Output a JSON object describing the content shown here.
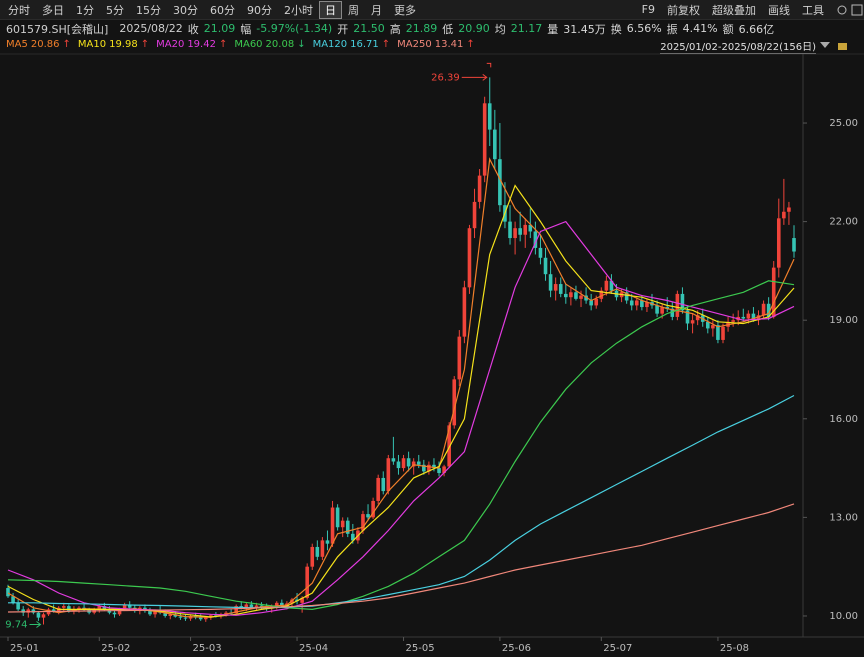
{
  "toolbar": {
    "periods": [
      "分时",
      "多日",
      "1分",
      "5分",
      "15分",
      "30分",
      "60分",
      "90分",
      "2小时",
      "日",
      "周",
      "月",
      "更多"
    ],
    "active_period": 9,
    "tools": [
      "F9",
      "前复权",
      "超级叠加",
      "画线",
      "工具"
    ]
  },
  "quote": {
    "code": "601579.SH[会稽山]",
    "date": "2025/08/22",
    "fields": [
      {
        "label": "收",
        "value": "21.09",
        "color": "down"
      },
      {
        "label": "幅",
        "value": "-5.97%(-1.34)",
        "color": "down"
      },
      {
        "label": "开",
        "value": "21.50",
        "color": "down"
      },
      {
        "label": "高",
        "value": "21.89",
        "color": "down"
      },
      {
        "label": "低",
        "value": "20.90",
        "color": "down"
      },
      {
        "label": "均",
        "value": "21.17",
        "color": "down"
      },
      {
        "label": "量",
        "value": "31.45万",
        "color": "plain"
      },
      {
        "label": "换",
        "value": "6.56%",
        "color": "plain"
      },
      {
        "label": "振",
        "value": "4.41%",
        "color": "plain"
      },
      {
        "label": "额",
        "value": "6.66亿",
        "color": "plain"
      }
    ]
  },
  "chart_data": {
    "type": "candlestick",
    "range_label": "2025/01/02-2025/08/22(156日)",
    "up_color": "#f0443a",
    "down_color": "#36c4b4",
    "ylim": [
      9.36,
      27.07
    ],
    "yticks": [
      {
        "value": 10,
        "label": "10.00"
      },
      {
        "value": 13,
        "label": "13.00"
      },
      {
        "value": 16,
        "label": "16.00"
      },
      {
        "value": 19,
        "label": "19.00"
      },
      {
        "value": 22,
        "label": "22.00"
      },
      {
        "value": 25,
        "label": "25.00"
      }
    ],
    "xlim": [
      0,
      155
    ],
    "xticks": [
      {
        "value": 0,
        "label": "25-01"
      },
      {
        "value": 18,
        "label": "25-02"
      },
      {
        "value": 36,
        "label": "25-03"
      },
      {
        "value": 57,
        "label": "25-04"
      },
      {
        "value": 78,
        "label": "25-05"
      },
      {
        "value": 97,
        "label": "25-06"
      },
      {
        "value": 117,
        "label": "25-07"
      },
      {
        "value": 140,
        "label": "25-08"
      }
    ],
    "max_label": {
      "index": 95,
      "value": 26.39
    },
    "min_label": {
      "index": 7,
      "value": 9.74
    },
    "candles": [
      [
        10.85,
        10.95,
        10.55,
        10.6
      ],
      [
        10.6,
        10.7,
        10.35,
        10.4
      ],
      [
        10.4,
        10.5,
        10.15,
        10.2
      ],
      [
        10.2,
        10.3,
        10.0,
        10.1
      ],
      [
        10.1,
        10.25,
        9.95,
        10.2
      ],
      [
        10.2,
        10.3,
        10.05,
        10.1
      ],
      [
        10.1,
        10.15,
        9.85,
        9.95
      ],
      [
        9.95,
        10.1,
        9.74,
        10.05
      ],
      [
        10.05,
        10.25,
        10.0,
        10.2
      ],
      [
        10.2,
        10.35,
        10.1,
        10.15
      ],
      [
        10.15,
        10.3,
        10.05,
        10.25
      ],
      [
        10.25,
        10.4,
        10.15,
        10.3
      ],
      [
        10.3,
        10.35,
        10.1,
        10.15
      ],
      [
        10.15,
        10.3,
        10.05,
        10.2
      ],
      [
        10.2,
        10.3,
        10.1,
        10.25
      ],
      [
        10.25,
        10.35,
        10.15,
        10.2
      ],
      [
        10.2,
        10.25,
        10.05,
        10.1
      ],
      [
        10.1,
        10.25,
        10.05,
        10.2
      ],
      [
        10.2,
        10.35,
        10.1,
        10.3
      ],
      [
        10.3,
        10.4,
        10.15,
        10.2
      ],
      [
        10.2,
        10.3,
        10.05,
        10.1
      ],
      [
        10.1,
        10.2,
        9.95,
        10.05
      ],
      [
        10.05,
        10.25,
        10.0,
        10.2
      ],
      [
        10.2,
        10.4,
        10.15,
        10.35
      ],
      [
        10.35,
        10.45,
        10.2,
        10.25
      ],
      [
        10.25,
        10.35,
        10.1,
        10.15
      ],
      [
        10.15,
        10.3,
        10.05,
        10.25
      ],
      [
        10.25,
        10.35,
        10.1,
        10.15
      ],
      [
        10.15,
        10.25,
        10.0,
        10.05
      ],
      [
        10.05,
        10.2,
        9.95,
        10.15
      ],
      [
        10.15,
        10.3,
        10.05,
        10.1
      ],
      [
        10.1,
        10.2,
        9.95,
        10.0
      ],
      [
        10.0,
        10.1,
        9.9,
        10.05
      ],
      [
        10.05,
        10.15,
        9.95,
        9.98
      ],
      [
        9.98,
        10.1,
        9.88,
        9.95
      ],
      [
        9.95,
        10.05,
        9.85,
        9.92
      ],
      [
        9.92,
        10.05,
        9.85,
        10.0
      ],
      [
        10.0,
        10.1,
        9.9,
        9.95
      ],
      [
        9.95,
        10.05,
        9.85,
        9.9
      ],
      [
        9.9,
        10.0,
        9.82,
        9.95
      ],
      [
        9.95,
        10.05,
        9.88,
        10.02
      ],
      [
        10.02,
        10.12,
        9.95,
        10.0
      ],
      [
        10.0,
        10.1,
        9.92,
        10.05
      ],
      [
        10.05,
        10.15,
        9.98,
        10.1
      ],
      [
        10.1,
        10.2,
        10.02,
        10.08
      ],
      [
        10.08,
        10.35,
        10.05,
        10.3
      ],
      [
        10.3,
        10.45,
        10.2,
        10.25
      ],
      [
        10.25,
        10.4,
        10.15,
        10.35
      ],
      [
        10.35,
        10.45,
        10.2,
        10.25
      ],
      [
        10.25,
        10.4,
        10.18,
        10.32
      ],
      [
        10.32,
        10.42,
        10.2,
        10.28
      ],
      [
        10.28,
        10.38,
        10.15,
        10.22
      ],
      [
        10.22,
        10.35,
        10.1,
        10.3
      ],
      [
        10.3,
        10.45,
        10.2,
        10.4
      ],
      [
        10.4,
        10.5,
        10.25,
        10.3
      ],
      [
        10.3,
        10.45,
        10.2,
        10.38
      ],
      [
        10.38,
        10.55,
        10.3,
        10.5
      ],
      [
        10.5,
        10.7,
        10.35,
        10.45
      ],
      [
        10.4,
        10.6,
        10.1,
        10.55
      ],
      [
        10.55,
        11.6,
        10.5,
        11.5
      ],
      [
        11.5,
        12.2,
        11.4,
        12.1
      ],
      [
        12.1,
        12.3,
        11.7,
        11.8
      ],
      [
        11.8,
        12.4,
        11.7,
        12.3
      ],
      [
        12.3,
        12.6,
        12.0,
        12.2
      ],
      [
        12.2,
        13.5,
        12.1,
        13.3
      ],
      [
        13.3,
        13.4,
        12.6,
        12.7
      ],
      [
        12.7,
        13.0,
        12.4,
        12.9
      ],
      [
        12.9,
        13.0,
        12.4,
        12.5
      ],
      [
        12.5,
        12.8,
        12.2,
        12.3
      ],
      [
        12.3,
        12.7,
        12.2,
        12.6
      ],
      [
        12.6,
        13.2,
        12.5,
        13.1
      ],
      [
        13.1,
        13.4,
        12.9,
        13.0
      ],
      [
        13.0,
        13.6,
        12.95,
        13.5
      ],
      [
        13.5,
        14.3,
        13.4,
        14.2
      ],
      [
        14.2,
        14.4,
        13.7,
        13.8
      ],
      [
        13.8,
        14.9,
        13.7,
        14.8
      ],
      [
        14.8,
        15.45,
        14.6,
        14.7
      ],
      [
        14.7,
        14.9,
        14.3,
        14.5
      ],
      [
        14.5,
        14.9,
        14.4,
        14.8
      ],
      [
        14.8,
        15.0,
        14.4,
        14.55
      ],
      [
        14.55,
        14.8,
        14.3,
        14.7
      ],
      [
        14.7,
        14.9,
        14.5,
        14.6
      ],
      [
        14.6,
        14.75,
        14.3,
        14.4
      ],
      [
        14.4,
        14.7,
        14.3,
        14.6
      ],
      [
        14.6,
        14.8,
        14.4,
        14.5
      ],
      [
        14.5,
        14.7,
        14.25,
        14.35
      ],
      [
        14.35,
        14.6,
        14.25,
        14.55
      ],
      [
        14.55,
        15.9,
        14.5,
        15.8
      ],
      [
        15.8,
        17.3,
        15.7,
        17.2
      ],
      [
        17.2,
        18.7,
        17.0,
        18.5
      ],
      [
        18.5,
        20.2,
        18.3,
        20.0
      ],
      [
        20.0,
        21.9,
        19.8,
        21.8
      ],
      [
        21.8,
        23.0,
        21.5,
        22.6
      ],
      [
        22.6,
        23.6,
        22.4,
        23.4
      ],
      [
        23.4,
        25.8,
        23.2,
        25.6
      ],
      [
        25.6,
        26.39,
        24.3,
        24.8
      ],
      [
        24.8,
        25.4,
        23.6,
        23.9
      ],
      [
        23.9,
        25.0,
        22.3,
        22.5
      ],
      [
        22.5,
        23.2,
        21.8,
        22.0
      ],
      [
        22.0,
        22.5,
        21.3,
        21.5
      ],
      [
        21.5,
        22.0,
        21.0,
        21.8
      ],
      [
        21.8,
        22.3,
        21.4,
        21.6
      ],
      [
        21.6,
        22.1,
        21.2,
        21.9
      ],
      [
        21.9,
        22.4,
        21.5,
        21.7
      ],
      [
        21.7,
        22.0,
        21.0,
        21.2
      ],
      [
        21.2,
        21.6,
        20.7,
        20.9
      ],
      [
        20.9,
        21.2,
        20.2,
        20.4
      ],
      [
        20.4,
        20.8,
        19.7,
        19.9
      ],
      [
        19.9,
        20.3,
        19.6,
        20.1
      ],
      [
        20.1,
        20.3,
        19.7,
        19.8
      ],
      [
        19.8,
        20.1,
        19.5,
        19.7
      ],
      [
        19.7,
        20.0,
        19.45,
        19.85
      ],
      [
        19.85,
        20.05,
        19.6,
        19.65
      ],
      [
        19.65,
        19.9,
        19.4,
        19.75
      ],
      [
        19.75,
        20.0,
        19.5,
        19.6
      ],
      [
        19.6,
        19.8,
        19.3,
        19.45
      ],
      [
        19.45,
        19.75,
        19.35,
        19.65
      ],
      [
        19.65,
        20.0,
        19.55,
        19.9
      ],
      [
        19.9,
        20.35,
        19.75,
        20.2
      ],
      [
        20.2,
        20.4,
        19.8,
        19.9
      ],
      [
        19.9,
        20.1,
        19.6,
        19.7
      ],
      [
        19.7,
        19.95,
        19.55,
        19.85
      ],
      [
        19.85,
        20.0,
        19.5,
        19.6
      ],
      [
        19.6,
        19.8,
        19.3,
        19.45
      ],
      [
        19.45,
        19.7,
        19.3,
        19.6
      ],
      [
        19.6,
        19.75,
        19.3,
        19.4
      ],
      [
        19.4,
        19.65,
        19.25,
        19.55
      ],
      [
        19.55,
        19.8,
        19.35,
        19.45
      ],
      [
        19.45,
        19.6,
        19.1,
        19.2
      ],
      [
        19.2,
        19.5,
        19.05,
        19.4
      ],
      [
        19.4,
        19.7,
        19.25,
        19.35
      ],
      [
        19.35,
        19.55,
        19.0,
        19.1
      ],
      [
        19.1,
        19.9,
        19.0,
        19.8
      ],
      [
        19.8,
        20.0,
        19.2,
        19.3
      ],
      [
        19.3,
        19.45,
        18.7,
        18.9
      ],
      [
        18.9,
        19.2,
        18.6,
        19.0
      ],
      [
        19.0,
        19.3,
        18.85,
        19.15
      ],
      [
        19.15,
        19.35,
        18.8,
        18.95
      ],
      [
        18.95,
        19.1,
        18.6,
        18.75
      ],
      [
        18.75,
        19.0,
        18.5,
        18.85
      ],
      [
        18.85,
        19.0,
        18.3,
        18.4
      ],
      [
        18.4,
        18.9,
        18.3,
        18.8
      ],
      [
        18.8,
        19.1,
        18.65,
        18.95
      ],
      [
        18.95,
        19.2,
        18.8,
        19.0
      ],
      [
        19.0,
        19.3,
        18.85,
        19.1
      ],
      [
        19.1,
        19.35,
        18.95,
        19.05
      ],
      [
        19.05,
        19.3,
        18.9,
        19.2
      ],
      [
        19.2,
        19.4,
        18.95,
        19.0
      ],
      [
        19.0,
        19.3,
        18.85,
        19.15
      ],
      [
        19.15,
        19.6,
        19.05,
        19.5
      ],
      [
        19.5,
        19.7,
        19.0,
        19.1
      ],
      [
        19.1,
        20.8,
        19.05,
        20.6
      ],
      [
        20.6,
        22.7,
        20.3,
        22.1
      ],
      [
        22.1,
        23.3,
        21.9,
        22.3
      ],
      [
        22.3,
        22.6,
        21.9,
        22.43
      ],
      [
        21.5,
        21.89,
        20.9,
        21.09
      ]
    ],
    "ma_x": [
      0,
      5,
      10,
      15,
      20,
      25,
      30,
      35,
      40,
      45,
      50,
      55,
      60,
      65,
      70,
      75,
      80,
      85,
      90,
      95,
      100,
      105,
      110,
      115,
      120,
      125,
      130,
      135,
      140,
      145,
      150,
      155
    ],
    "series": [
      {
        "name": "MA5",
        "value_label": "20.86",
        "trend": "↑",
        "color": "#f07f2a",
        "values": [
          10.7,
          10.25,
          10.1,
          10.22,
          10.2,
          10.22,
          10.12,
          9.98,
          9.96,
          10.12,
          10.28,
          10.33,
          11.0,
          12.5,
          12.7,
          13.8,
          14.6,
          14.5,
          17.5,
          23.9,
          22.4,
          21.6,
          20.1,
          19.6,
          19.95,
          19.6,
          19.35,
          19.2,
          18.8,
          18.95,
          19.2,
          20.86
        ]
      },
      {
        "name": "MA10",
        "value_label": "19.98",
        "trend": "↑",
        "color": "#f5e21b",
        "values": [
          10.9,
          10.5,
          10.2,
          10.2,
          10.2,
          10.2,
          10.15,
          10.05,
          9.97,
          10.05,
          10.2,
          10.3,
          10.7,
          11.8,
          12.6,
          13.3,
          14.2,
          14.55,
          16.0,
          21.0,
          23.1,
          22.0,
          20.8,
          19.9,
          19.8,
          19.7,
          19.45,
          19.3,
          18.95,
          18.9,
          19.1,
          19.98
        ]
      },
      {
        "name": "MA20",
        "value_label": "19.42",
        "trend": "↑",
        "color": "#e23be0",
        "values": [
          11.4,
          11.1,
          10.7,
          10.4,
          10.25,
          10.2,
          10.18,
          10.1,
          10.05,
          10.02,
          10.1,
          10.22,
          10.45,
          11.1,
          11.8,
          12.6,
          13.5,
          14.2,
          15.0,
          17.5,
          20.0,
          21.7,
          22.0,
          21.0,
          20.0,
          19.75,
          19.6,
          19.4,
          19.2,
          19.0,
          19.05,
          19.42
        ]
      },
      {
        "name": "MA60",
        "value_label": "20.08",
        "trend": "↓",
        "color": "#3cc94f",
        "values": [
          11.1,
          11.08,
          11.05,
          11.0,
          10.95,
          10.9,
          10.85,
          10.75,
          10.6,
          10.45,
          10.35,
          10.25,
          10.2,
          10.35,
          10.6,
          10.9,
          11.3,
          11.8,
          12.3,
          13.4,
          14.7,
          15.9,
          16.9,
          17.7,
          18.3,
          18.8,
          19.2,
          19.45,
          19.65,
          19.85,
          20.2,
          20.08
        ]
      },
      {
        "name": "MA120",
        "value_label": "16.71",
        "trend": "↑",
        "color": "#49d0e0",
        "values": [
          10.4,
          10.4,
          10.38,
          10.37,
          10.35,
          10.33,
          10.32,
          10.3,
          10.28,
          10.26,
          10.25,
          10.27,
          10.3,
          10.4,
          10.5,
          10.65,
          10.8,
          10.95,
          11.2,
          11.7,
          12.3,
          12.8,
          13.2,
          13.6,
          14.0,
          14.4,
          14.8,
          15.2,
          15.6,
          15.95,
          16.3,
          16.71
        ]
      },
      {
        "name": "MA250",
        "value_label": "13.41",
        "trend": "↑",
        "color": "#f0877a",
        "values": [
          10.12,
          10.13,
          10.14,
          10.15,
          10.16,
          10.17,
          10.18,
          10.19,
          10.2,
          10.22,
          10.25,
          10.28,
          10.32,
          10.38,
          10.45,
          10.55,
          10.7,
          10.85,
          11.0,
          11.2,
          11.4,
          11.55,
          11.7,
          11.85,
          12.0,
          12.15,
          12.35,
          12.55,
          12.75,
          12.95,
          13.15,
          13.41
        ]
      }
    ]
  }
}
